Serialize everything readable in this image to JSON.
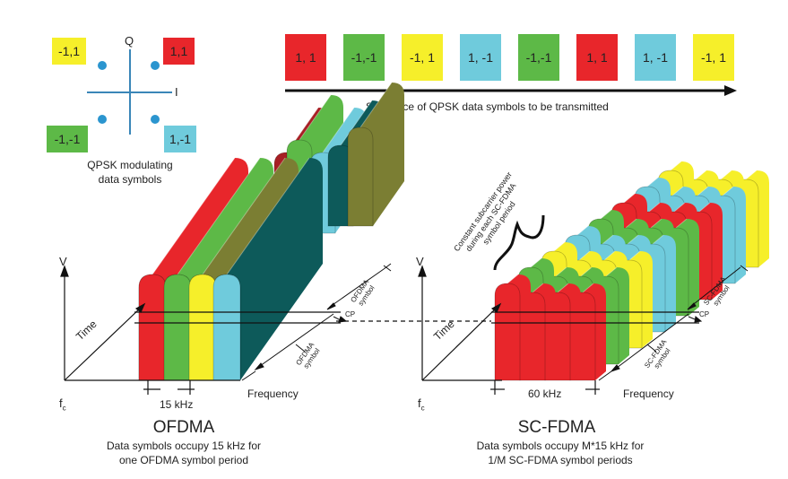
{
  "colors": {
    "red": "#e8262b",
    "green": "#5db947",
    "yellow": "#f6ef2a",
    "cyan": "#6fcbdc",
    "teal": "#0d5a5a",
    "olive": "#7b7e33",
    "darkred": "#a71f24",
    "dot": "#2b95cf"
  },
  "constellation": {
    "q_label": "Q",
    "i_label": "I",
    "points": [
      {
        "label": "-1,1",
        "color": "yellow"
      },
      {
        "label": "1,1",
        "color": "red"
      },
      {
        "label": "-1,-1",
        "color": "green"
      },
      {
        "label": "1,-1",
        "color": "cyan"
      }
    ],
    "caption_line1": "QPSK modulating",
    "caption_line2": "data symbols"
  },
  "sequence": {
    "symbols": [
      {
        "label": "1, 1",
        "color": "red"
      },
      {
        "label": "-1,-1",
        "color": "green"
      },
      {
        "label": "-1, 1",
        "color": "yellow"
      },
      {
        "label": "1, -1",
        "color": "cyan"
      },
      {
        "label": "-1,-1",
        "color": "green"
      },
      {
        "label": "1, 1",
        "color": "red"
      },
      {
        "label": "1, -1",
        "color": "cyan"
      },
      {
        "label": "-1, 1",
        "color": "yellow"
      }
    ],
    "caption": "Sequence of QPSK data symbols to be transmitted"
  },
  "ofdma": {
    "v_label": "V",
    "time_label": "Time",
    "freq_label": "Frequency",
    "fc_label": "f",
    "fc_sub": "c",
    "bandwidth_label": "15 kHz",
    "cp_label": "CP",
    "symbol_label_1": "OFDMA",
    "symbol_label_2": "symbol",
    "title": "OFDMA",
    "desc_line1": "Data symbols occupy 15 kHz for",
    "desc_line2": "one OFDMA symbol period"
  },
  "scfdma": {
    "v_label": "V",
    "time_label": "Time",
    "freq_label": "Frequency",
    "fc_label": "f",
    "fc_sub": "c",
    "bandwidth_label": "60 kHz",
    "cp_label": "CP",
    "symbol_label_1": "SC-FDMA",
    "symbol_label_2": "symbol",
    "power_line1": "Constant subcarrier power",
    "power_line2": "during each SC-FDMA",
    "power_line3": "symbol period",
    "title": "SC-FDMA",
    "desc_line1": "Data symbols occupy M*15 kHz for",
    "desc_line2": "1/M SC-FDMA symbol periods"
  }
}
